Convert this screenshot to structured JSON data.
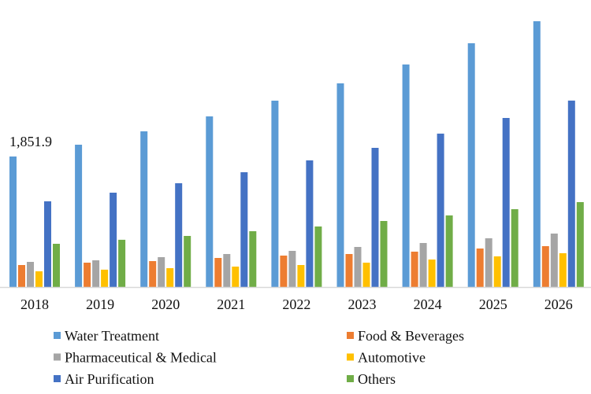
{
  "chart_data": {
    "type": "bar",
    "title": "",
    "xlabel": "",
    "ylabel": "",
    "grid": false,
    "legend_placement": "bottom",
    "ylim": [
      0,
      3800
    ],
    "categories": [
      "2018",
      "2019",
      "2020",
      "2021",
      "2022",
      "2023",
      "2024",
      "2025",
      "2026"
    ],
    "series": [
      {
        "name": "Water Treatment",
        "color": "#5b9bd5",
        "values": [
          1851.9,
          2019,
          2209,
          2421,
          2644,
          2889,
          3157,
          3458,
          3771
        ]
      },
      {
        "name": "Food & Beverages",
        "color": "#ed7d31",
        "values": [
          312,
          346,
          368,
          413,
          446,
          469,
          502,
          547,
          580
        ]
      },
      {
        "name": "Pharmaceutical & Medical",
        "color": "#a5a5a5",
        "values": [
          357,
          379,
          424,
          469,
          513,
          569,
          625,
          692,
          759
        ]
      },
      {
        "name": "Automotive",
        "color": "#ffc000",
        "values": [
          223,
          246,
          268,
          290,
          312,
          346,
          391,
          435,
          480
        ]
      },
      {
        "name": "Air Purification",
        "color": "#4472c4",
        "values": [
          1216,
          1339,
          1473,
          1629,
          1797,
          1975,
          2176,
          2399,
          2645
        ]
      },
      {
        "name": "Others",
        "color": "#70ad47",
        "values": [
          614,
          670,
          725,
          792,
          859,
          937,
          1016,
          1105,
          1205
        ]
      }
    ],
    "annotations": [
      {
        "series": "Water Treatment",
        "category": "2018",
        "text": "1,851.9"
      }
    ]
  }
}
